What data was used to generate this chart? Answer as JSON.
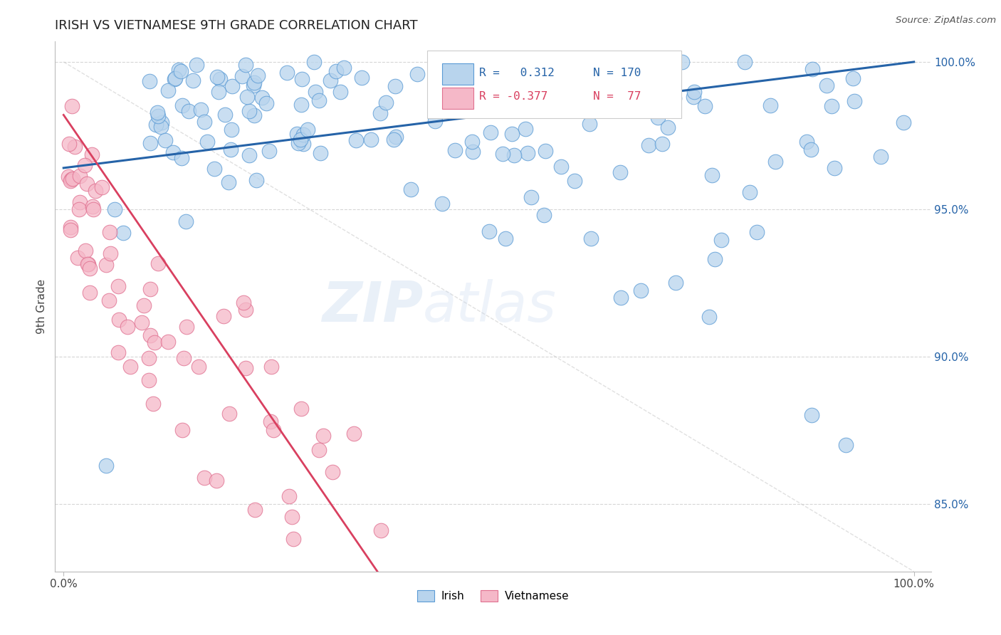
{
  "title": "IRISH VS VIETNAMESE 9TH GRADE CORRELATION CHART",
  "source_text": "Source: ZipAtlas.com",
  "ylabel": "9th Grade",
  "irish_R": 0.312,
  "irish_N": 170,
  "viet_R": -0.377,
  "viet_N": 77,
  "irish_color": "#b8d4ed",
  "irish_edge_color": "#5b9bd5",
  "viet_color": "#f5b8c8",
  "viet_edge_color": "#e07090",
  "irish_line_color": "#2563a8",
  "viet_line_color": "#d94060",
  "watermark_zip": "ZIP",
  "watermark_atlas": "atlas",
  "background_color": "#ffffff",
  "grid_color": "#cccccc",
  "ylim_min": 0.827,
  "ylim_max": 1.007,
  "xlim_min": -0.01,
  "xlim_max": 1.02,
  "y_ticks": [
    0.85,
    0.9,
    0.95,
    1.0
  ],
  "y_tick_labels": [
    "85.0%",
    "90.0%",
    "95.0%",
    "100.0%"
  ],
  "x_ticks": [
    0.0,
    1.0
  ],
  "x_tick_labels": [
    "0.0%",
    "100.0%"
  ]
}
